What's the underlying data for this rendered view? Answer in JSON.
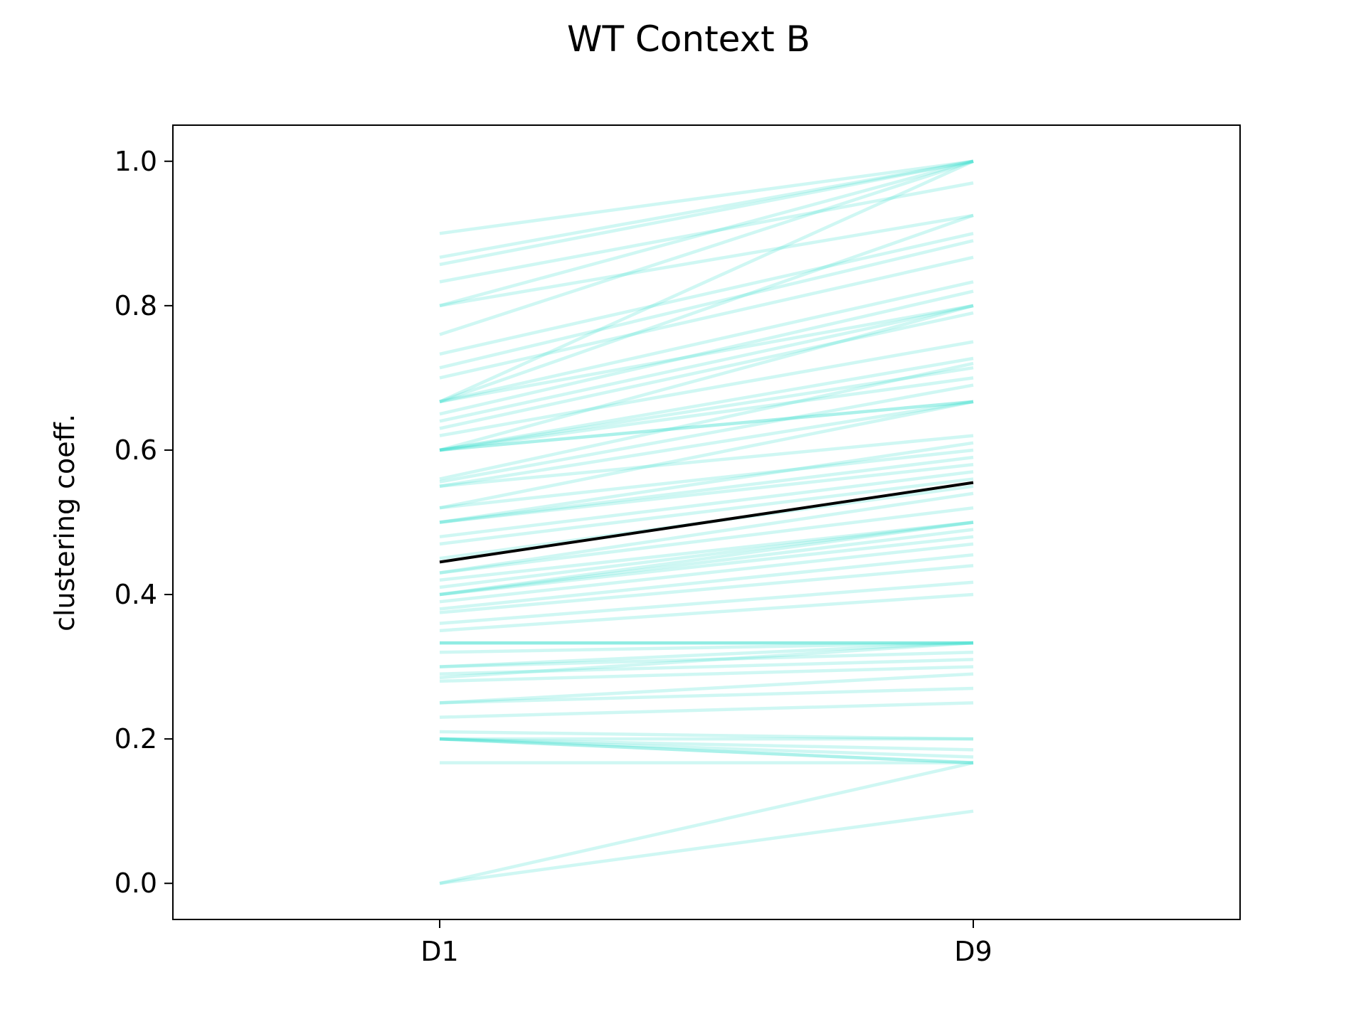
{
  "chart_data": {
    "type": "line",
    "title": "WT Context B",
    "xlabel": "",
    "ylabel": "clustering coeff.",
    "categories": [
      "D1",
      "D9"
    ],
    "x_ticks": [
      "D1",
      "D9"
    ],
    "y_ticks": [
      "0.0",
      "0.2",
      "0.4",
      "0.6",
      "0.8",
      "1.0"
    ],
    "ylim": [
      -0.05,
      1.05
    ],
    "grid": false,
    "legend": "none",
    "colors": {
      "individual": "#40E0D0",
      "mean": "#000000"
    },
    "series_individual": [
      [
        0.9,
        1.0
      ],
      [
        0.867,
        1.0
      ],
      [
        0.857,
        1.0
      ],
      [
        0.833,
        0.97
      ],
      [
        0.8,
        1.0
      ],
      [
        0.8,
        0.925
      ],
      [
        0.76,
        1.0
      ],
      [
        0.733,
        0.9
      ],
      [
        0.714,
        0.89
      ],
      [
        0.7,
        0.867
      ],
      [
        0.667,
        1.0
      ],
      [
        0.667,
        0.925
      ],
      [
        0.667,
        0.833
      ],
      [
        0.667,
        0.8
      ],
      [
        0.65,
        0.82
      ],
      [
        0.64,
        0.8
      ],
      [
        0.63,
        0.79
      ],
      [
        0.62,
        0.75
      ],
      [
        0.6,
        0.8
      ],
      [
        0.6,
        0.727
      ],
      [
        0.6,
        0.714
      ],
      [
        0.6,
        0.7
      ],
      [
        0.6,
        0.667
      ],
      [
        0.6,
        0.667
      ],
      [
        0.56,
        0.72
      ],
      [
        0.556,
        0.69
      ],
      [
        0.55,
        0.667
      ],
      [
        0.55,
        0.62
      ],
      [
        0.52,
        0.667
      ],
      [
        0.52,
        0.6
      ],
      [
        0.5,
        0.61
      ],
      [
        0.5,
        0.59
      ],
      [
        0.5,
        0.58
      ],
      [
        0.48,
        0.57
      ],
      [
        0.47,
        0.56
      ],
      [
        0.45,
        0.55
      ],
      [
        0.43,
        0.54
      ],
      [
        0.43,
        0.52
      ],
      [
        0.42,
        0.5
      ],
      [
        0.41,
        0.5
      ],
      [
        0.4,
        0.5
      ],
      [
        0.4,
        0.49
      ],
      [
        0.4,
        0.48
      ],
      [
        0.39,
        0.47
      ],
      [
        0.38,
        0.455
      ],
      [
        0.375,
        0.44
      ],
      [
        0.36,
        0.417
      ],
      [
        0.35,
        0.4
      ],
      [
        0.333,
        0.333
      ],
      [
        0.333,
        0.333
      ],
      [
        0.333,
        0.333
      ],
      [
        0.32,
        0.333
      ],
      [
        0.3,
        0.333
      ],
      [
        0.3,
        0.32
      ],
      [
        0.29,
        0.31
      ],
      [
        0.285,
        0.333
      ],
      [
        0.28,
        0.3
      ],
      [
        0.25,
        0.29
      ],
      [
        0.25,
        0.27
      ],
      [
        0.23,
        0.25
      ],
      [
        0.21,
        0.2
      ],
      [
        0.2,
        0.2
      ],
      [
        0.2,
        0.185
      ],
      [
        0.2,
        0.175
      ],
      [
        0.2,
        0.167
      ],
      [
        0.2,
        0.167
      ],
      [
        0.167,
        0.167
      ],
      [
        0.0,
        0.167
      ],
      [
        0.0,
        0.1
      ]
    ],
    "series_mean": [
      0.445,
      0.555
    ]
  }
}
